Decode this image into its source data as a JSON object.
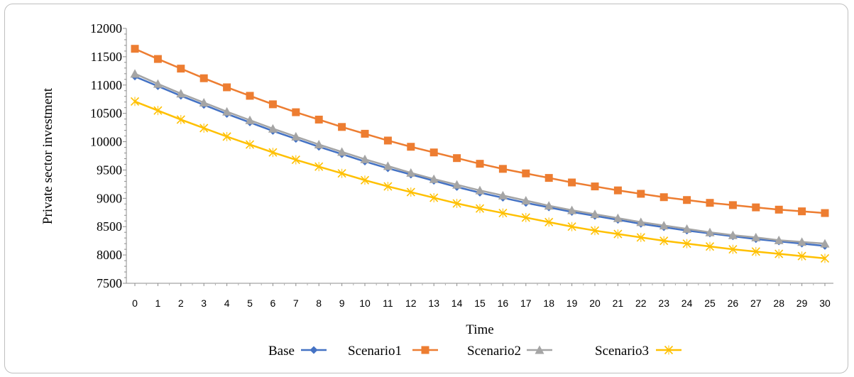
{
  "chart_data": {
    "type": "line",
    "title": "",
    "xlabel": "Time",
    "ylabel": "Private sector investment",
    "ylim": [
      7500,
      12000
    ],
    "yticks": [
      7500,
      8000,
      8500,
      9000,
      9500,
      10000,
      10500,
      11000,
      11500,
      12000
    ],
    "xlim": [
      0,
      30
    ],
    "x": [
      0,
      1,
      2,
      3,
      4,
      5,
      6,
      7,
      8,
      9,
      10,
      11,
      12,
      13,
      14,
      15,
      16,
      17,
      18,
      19,
      20,
      21,
      22,
      23,
      24,
      25,
      26,
      27,
      28,
      29,
      30
    ],
    "grid": false,
    "legend_position": "bottom",
    "series": [
      {
        "name": "Base",
        "color": "#4472C4",
        "marker": "diamond",
        "values": [
          11150,
          10980,
          10810,
          10650,
          10490,
          10340,
          10190,
          10050,
          9910,
          9780,
          9650,
          9530,
          9420,
          9310,
          9200,
          9100,
          9010,
          8920,
          8840,
          8760,
          8690,
          8620,
          8550,
          8490,
          8430,
          8380,
          8330,
          8280,
          8240,
          8200,
          8160
        ]
      },
      {
        "name": "Scenario1",
        "color": "#ED7D31",
        "marker": "square",
        "values": [
          11640,
          11460,
          11290,
          11120,
          10960,
          10810,
          10660,
          10520,
          10390,
          10260,
          10140,
          10020,
          9910,
          9810,
          9710,
          9610,
          9520,
          9440,
          9360,
          9280,
          9210,
          9140,
          9080,
          9020,
          8970,
          8920,
          8880,
          8840,
          8800,
          8770,
          8740
        ]
      },
      {
        "name": "Scenario2",
        "color": "#A5A5A5",
        "marker": "triangle",
        "values": [
          11200,
          11020,
          10850,
          10690,
          10530,
          10380,
          10230,
          10090,
          9950,
          9820,
          9690,
          9570,
          9450,
          9340,
          9240,
          9140,
          9050,
          8960,
          8870,
          8790,
          8720,
          8650,
          8580,
          8520,
          8460,
          8400,
          8350,
          8310,
          8260,
          8230,
          8200
        ]
      },
      {
        "name": "Scenario3",
        "color": "#FFC000",
        "marker": "star",
        "values": [
          10710,
          10550,
          10390,
          10240,
          10090,
          9950,
          9810,
          9680,
          9560,
          9440,
          9320,
          9210,
          9110,
          9010,
          8910,
          8820,
          8740,
          8660,
          8580,
          8500,
          8430,
          8370,
          8310,
          8250,
          8200,
          8150,
          8100,
          8060,
          8020,
          7980,
          7940
        ]
      }
    ]
  }
}
